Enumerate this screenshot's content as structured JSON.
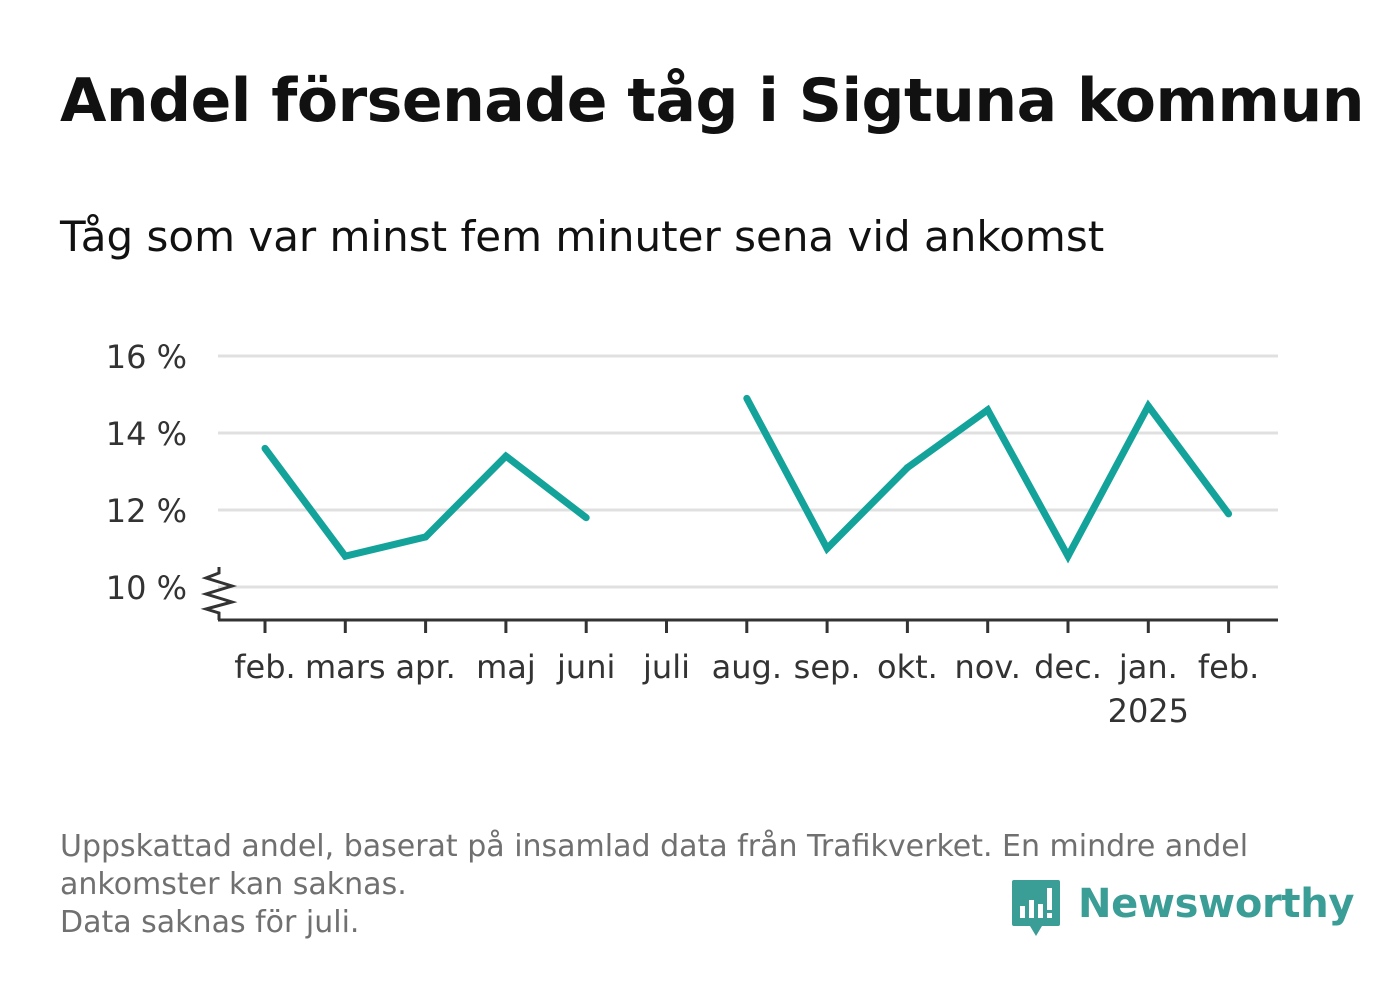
{
  "title": "Andel försenade tåg i Sigtuna kommun",
  "subtitle": "Tåg som var minst fem minuter sena vid ankomst",
  "footnote": {
    "line1": "Uppskattad andel, baserat på insamlad data från Trafikverket. En mindre andel",
    "line2": "ankomster kan saknas.",
    "line3": "Data saknas för juli."
  },
  "brand": {
    "name": "Newsworthy",
    "color": "#3a9d96",
    "icon": "bar-chart-speech-bubble-icon"
  },
  "colors": {
    "line": "#13a39a",
    "grid": "#e0e0e0",
    "axis": "#333333"
  },
  "chart_data": {
    "type": "line",
    "categories": [
      "feb.",
      "mars",
      "apr.",
      "maj",
      "juni",
      "juli",
      "aug.",
      "sep.",
      "okt.",
      "nov.",
      "dec.",
      "jan.",
      "feb."
    ],
    "year_label": {
      "category_index": 11,
      "text": "2025"
    },
    "series": [
      {
        "values": [
          13.6,
          10.8,
          11.3,
          13.4,
          11.8,
          null,
          14.9,
          11.0,
          13.1,
          14.6,
          10.8,
          14.7,
          11.9
        ]
      }
    ],
    "yticks": [
      10,
      12,
      14,
      16
    ],
    "ytick_labels": [
      "10 %",
      "12 %",
      "14 %",
      "16 %"
    ],
    "ylim": [
      9.2,
      16
    ],
    "y_axis_break": true,
    "grid": true,
    "xlabel": "",
    "ylabel": ""
  }
}
